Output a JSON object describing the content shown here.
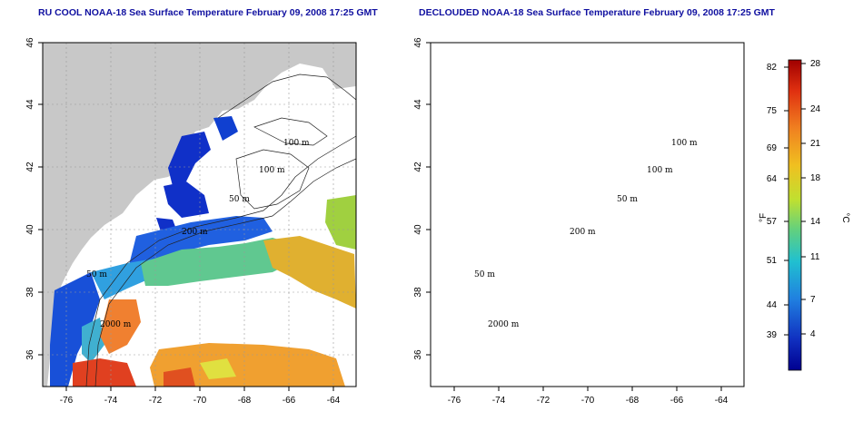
{
  "panels": [
    {
      "title": "RU COOL NOAA-18 Sea Surface Temperature February 09, 2008 17:25 GMT",
      "x_ticks": [
        "-76",
        "-74",
        "-72",
        "-70",
        "-68",
        "-66",
        "-64"
      ],
      "y_ticks": [
        "46",
        "44",
        "42",
        "40",
        "38",
        "36"
      ],
      "contour_labels": [
        "100 m",
        "100 m",
        "50 m",
        "200 m",
        "50 m",
        "2000 m"
      ]
    },
    {
      "title": "DECLOUDED NOAA-18 Sea Surface Temperature February 09, 2008 17:25 GMT",
      "x_ticks": [
        "-76",
        "-74",
        "-72",
        "-70",
        "-68",
        "-66",
        "-64"
      ],
      "y_ticks": [
        "46",
        "44",
        "42",
        "40",
        "38",
        "36"
      ],
      "contour_labels": [
        "100 m",
        "100 m",
        "50 m",
        "200 m",
        "50 m",
        "2000 m"
      ]
    }
  ],
  "colorbar": {
    "fahrenheit_label": "°F",
    "celsius_label": "°C",
    "fahrenheit_ticks": [
      "82",
      "75",
      "69",
      "64",
      "57",
      "51",
      "44",
      "39"
    ],
    "celsius_ticks": [
      "28",
      "24",
      "21",
      "18",
      "14",
      "11",
      "7",
      "4"
    ],
    "colors": [
      "#a00000",
      "#e03010",
      "#f08020",
      "#f0c020",
      "#c0e030",
      "#60d080",
      "#20c0d0",
      "#2080e0",
      "#1030c0",
      "#000090"
    ]
  },
  "colors": {
    "land": "#c8c8c8",
    "title": "#1010a0"
  }
}
